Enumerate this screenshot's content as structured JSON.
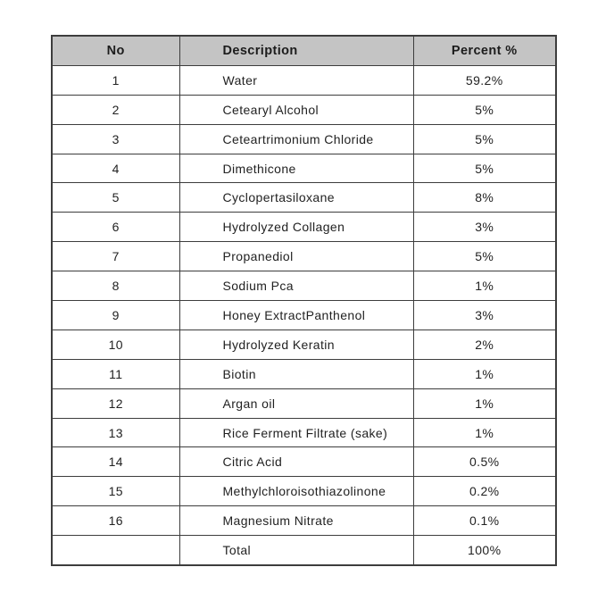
{
  "table": {
    "headers": {
      "no": "No",
      "description": "Description",
      "percent": "Percent %"
    },
    "rows": [
      {
        "no": "1",
        "description": "Water",
        "percent": "59.2%"
      },
      {
        "no": "2",
        "description": "Cetearyl Alcohol",
        "percent": "5%"
      },
      {
        "no": "3",
        "description": "Ceteartrimonium Chloride",
        "percent": "5%"
      },
      {
        "no": "4",
        "description": "Dimethicone",
        "percent": "5%"
      },
      {
        "no": "5",
        "description": "Cyclopertasiloxane",
        "percent": "8%"
      },
      {
        "no": "6",
        "description": "Hydrolyzed Collagen",
        "percent": "3%"
      },
      {
        "no": "7",
        "description": "Propanediol",
        "percent": "5%"
      },
      {
        "no": "8",
        "description": "Sodium Pca",
        "percent": "1%"
      },
      {
        "no": "9",
        "description": "Honey ExtractPanthenol",
        "percent": "3%"
      },
      {
        "no": "10",
        "description": "Hydrolyzed Keratin",
        "percent": "2%"
      },
      {
        "no": "11",
        "description": "Biotin",
        "percent": "1%"
      },
      {
        "no": "12",
        "description": "Argan oil",
        "percent": "1%"
      },
      {
        "no": "13",
        "description": "Rice Ferment Filtrate (sake)",
        "percent": "1%"
      },
      {
        "no": "14",
        "description": "Citric Acid",
        "percent": "0.5%"
      },
      {
        "no": "15",
        "description": "Methylchloroisothiazolinone",
        "percent": "0.2%"
      },
      {
        "no": "16",
        "description": "Magnesium Nitrate",
        "percent": "0.1%"
      }
    ],
    "total_row": {
      "no": "",
      "description": "Total",
      "percent": "100%"
    }
  },
  "colors": {
    "header_bg": "#c4c4c4",
    "border": "#3d3d3d",
    "text": "#222222",
    "background": "#ffffff"
  }
}
